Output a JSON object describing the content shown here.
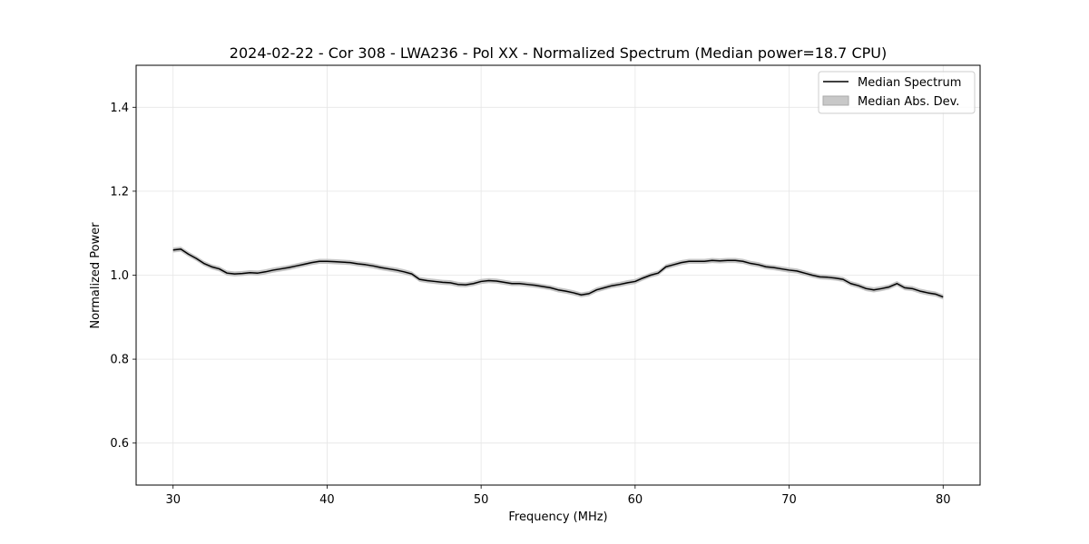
{
  "chart_data": {
    "type": "line",
    "title": "2024-02-22 - Cor 308 - LWA236 - Pol XX - Normalized Spectrum (Median power=18.7 CPU)",
    "xlabel": "Frequency (MHz)",
    "ylabel": "Normalized Power",
    "xlim": [
      27.6,
      82.4
    ],
    "ylim": [
      0.5,
      1.5
    ],
    "xticks": [
      30,
      40,
      50,
      60,
      70,
      80
    ],
    "yticks": [
      0.6,
      0.8,
      1.0,
      1.2,
      1.4
    ],
    "xtick_labels": [
      "30",
      "40",
      "50",
      "60",
      "70",
      "80"
    ],
    "ytick_labels": [
      "0.6",
      "0.8",
      "1.0",
      "1.2",
      "1.4"
    ],
    "grid": true,
    "legend_position": "top-right",
    "series": [
      {
        "name": "Median Spectrum",
        "kind": "line",
        "color": "#000000",
        "x": [
          30,
          30.5,
          31,
          31.5,
          32,
          32.5,
          33,
          33.5,
          34,
          34.5,
          35,
          35.5,
          36,
          36.5,
          37,
          37.5,
          38,
          38.5,
          39,
          39.5,
          40,
          40.5,
          41,
          41.5,
          42,
          42.5,
          43,
          43.5,
          44,
          44.5,
          45,
          45.5,
          46,
          46.5,
          47,
          47.5,
          48,
          48.5,
          49,
          49.5,
          50,
          50.5,
          51,
          51.5,
          52,
          52.5,
          53,
          53.5,
          54,
          54.5,
          55,
          55.5,
          56,
          56.5,
          57,
          57.5,
          58,
          58.5,
          59,
          59.5,
          60,
          60.5,
          61,
          61.5,
          62,
          62.5,
          63,
          63.5,
          64,
          64.5,
          65,
          65.5,
          66,
          66.5,
          67,
          67.5,
          68,
          68.5,
          69,
          69.5,
          70,
          70.5,
          71,
          71.5,
          72,
          72.5,
          73,
          73.5,
          74,
          74.5,
          75,
          75.5,
          76,
          76.5,
          77,
          77.5,
          78,
          78.5,
          79,
          79.5,
          80
        ],
        "y": [
          1.06,
          1.062,
          1.05,
          1.04,
          1.028,
          1.02,
          1.015,
          1.005,
          1.003,
          1.004,
          1.006,
          1.005,
          1.008,
          1.012,
          1.015,
          1.018,
          1.022,
          1.026,
          1.03,
          1.033,
          1.033,
          1.032,
          1.031,
          1.03,
          1.027,
          1.025,
          1.022,
          1.018,
          1.015,
          1.012,
          1.008,
          1.003,
          0.99,
          0.987,
          0.985,
          0.983,
          0.982,
          0.978,
          0.977,
          0.98,
          0.985,
          0.987,
          0.986,
          0.983,
          0.98,
          0.98,
          0.978,
          0.976,
          0.973,
          0.97,
          0.965,
          0.962,
          0.958,
          0.953,
          0.956,
          0.965,
          0.97,
          0.975,
          0.978,
          0.982,
          0.985,
          0.993,
          1.0,
          1.005,
          1.02,
          1.025,
          1.03,
          1.033,
          1.033,
          1.033,
          1.035,
          1.034,
          1.035,
          1.035,
          1.033,
          1.028,
          1.025,
          1.02,
          1.018,
          1.015,
          1.012,
          1.01,
          1.005,
          1.0,
          0.996,
          0.995,
          0.993,
          0.99,
          0.98,
          0.975,
          0.968,
          0.965,
          0.968,
          0.972,
          0.98,
          0.97,
          0.968,
          0.962,
          0.958,
          0.955,
          0.948
        ]
      },
      {
        "name": "Median Abs. Dev.",
        "kind": "band",
        "color": "#bbbbbb",
        "halfwidth": 0.006
      }
    ]
  }
}
